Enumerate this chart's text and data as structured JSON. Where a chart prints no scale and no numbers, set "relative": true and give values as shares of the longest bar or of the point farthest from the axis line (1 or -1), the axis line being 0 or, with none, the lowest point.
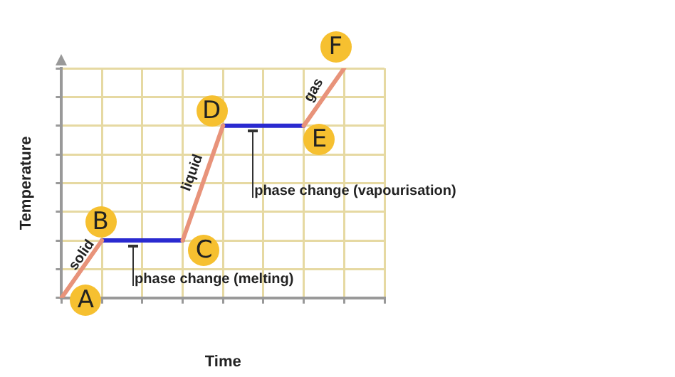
{
  "chart_data": {
    "type": "line",
    "relative": true,
    "xlabel": "Time",
    "ylabel": "Temperature",
    "categories": [
      null,
      null,
      null,
      null,
      null,
      null,
      null,
      null,
      null
    ],
    "series": [
      {
        "color": "#e8937a",
        "values": [
          0,
          0.25,
          null,
          0.25,
          0.75,
          null,
          0.75,
          1,
          null
        ]
      },
      {
        "color": "#2a2ad0",
        "values": [
          null,
          0.25,
          0.25,
          0.25,
          null,
          null,
          null,
          null,
          null
        ]
      },
      {
        "color": "#2a2ad0",
        "values": [
          null,
          null,
          null,
          null,
          0.75,
          0.75,
          0.75,
          null,
          null
        ]
      }
    ],
    "annotations": [
      "A",
      "B",
      "C",
      "D",
      "E",
      "F",
      "solid",
      "liquid",
      "gas",
      "phase change (melting)",
      "phase change (vapourisation)"
    ],
    "grid": true,
    "legend": false,
    "marker": "none",
    "line_style": "solid"
  }
}
